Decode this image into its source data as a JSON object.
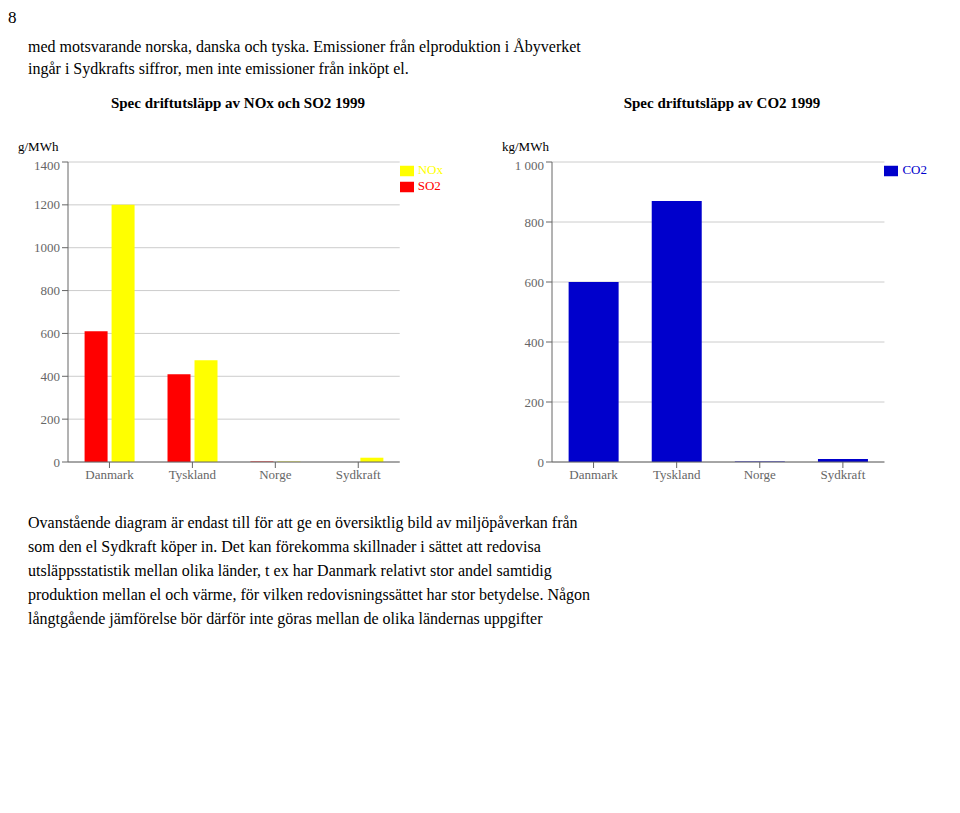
{
  "annotations": [
    "8",
    "med motsvarande norska, danska och tyska. Emissioner från elproduktion i Åbyverket\ningår i Sydkrafts siffror, men inte emissioner från inköpt el.",
    "Ovanstående diagram är endast till för att ge en översiktlig bild av miljöpåverkan från\nsom den el Sydkraft köper in. Det kan förekomma skillnader i sättet att redovisa\nutsläppsstatistik mellan olika länder, t ex har Danmark relativt stor andel samtidig\nproduktion mellan el och värme, för vilken redovisningssättet har stor betydelse. Någon\nlångtgående jämförelse bör därför inte göras mellan de olika ländernas uppgifter"
  ],
  "chart_data": [
    {
      "type": "bar",
      "title": "Spec driftutsläpp av NOx och SO2 1999",
      "y_label": "g/MWh",
      "categories": [
        "Danmark",
        "Tyskland",
        "Norge",
        "Sydkraft"
      ],
      "series": [
        {
          "name": "SO2",
          "color": "#FF0000",
          "values": [
            610,
            410,
            2,
            0
          ]
        },
        {
          "name": "NOx",
          "color": "#FFFF00",
          "values": [
            1200,
            475,
            2,
            20
          ]
        }
      ],
      "ylim": [
        0,
        1400
      ],
      "yticks": [
        0,
        200,
        400,
        600,
        800,
        1000,
        1200,
        1400
      ],
      "grid": true,
      "legend": "upper right"
    },
    {
      "type": "bar",
      "title": "Spec driftutsläpp av CO2 1999",
      "y_label": "kg/MWh",
      "categories": [
        "Danmark",
        "Tyskland",
        "Norge",
        "Sydkraft"
      ],
      "series": [
        {
          "name": "CO2",
          "color": "#0000CC",
          "values": [
            600,
            870,
            2,
            10
          ]
        }
      ],
      "ylim": [
        0,
        1000
      ],
      "yticks": [
        0,
        200,
        400,
        600,
        800,
        {
          "value": 1000,
          "label": "1 000"
        }
      ],
      "grid": true,
      "legend": "upper right"
    }
  ]
}
